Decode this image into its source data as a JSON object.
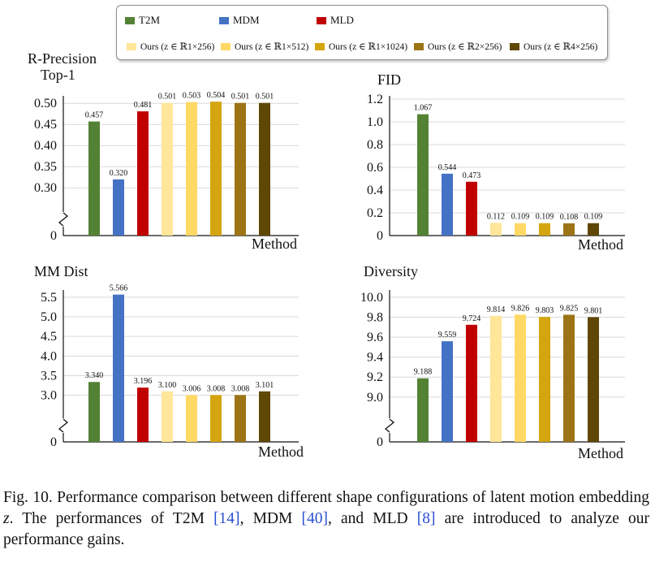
{
  "legend": {
    "series": [
      {
        "name": "T2M",
        "color": "#548235"
      },
      {
        "name": "MDM",
        "color": "#4472c4"
      },
      {
        "name": "MLD",
        "color": "#c00000"
      },
      {
        "name": "Ours (z ∈ ℝ1×256)",
        "color": "#ffe699"
      },
      {
        "name": "Ours (z ∈ ℝ1×512)",
        "color": "#ffd966"
      },
      {
        "name": "Ours (z ∈ ℝ1×1024)",
        "color": "#d4a50f"
      },
      {
        "name": "Ours (z ∈ ℝ2×256)",
        "color": "#9c7416"
      },
      {
        "name": "Ours (z ∈ ℝ4×256)",
        "color": "#5f4706"
      }
    ]
  },
  "chart_data": [
    {
      "type": "bar",
      "title": "R-Precision Top-1",
      "xlabel": "Method",
      "categories": [
        "T2M",
        "MDM",
        "MLD",
        "Ours (z ∈ ℝ1×256)",
        "Ours (z ∈ ℝ1×512)",
        "Ours (z ∈ ℝ1×1024)",
        "Ours (z ∈ ℝ2×256)",
        "Ours (z ∈ ℝ4×256)"
      ],
      "values": [
        0.457,
        0.32,
        0.481,
        0.501,
        0.503,
        0.504,
        0.501,
        0.501
      ],
      "value_labels": [
        "0.457",
        "0.320",
        "0.481",
        "0.501",
        "0.503",
        "0.504",
        "0.501",
        "0.501"
      ],
      "yticks": [
        "0.50",
        "0.45",
        "0.40",
        "0.35",
        "0.30"
      ],
      "ytick_values": [
        0.5,
        0.45,
        0.4,
        0.35,
        0.3
      ],
      "ylim": [
        0.26,
        0.51
      ],
      "zero_label": "0",
      "axis_break": true
    },
    {
      "type": "bar",
      "title": "FID",
      "xlabel": "Method",
      "categories": [
        "T2M",
        "MDM",
        "MLD",
        "Ours (z ∈ ℝ1×256)",
        "Ours (z ∈ ℝ1×512)",
        "Ours (z ∈ ℝ1×1024)",
        "Ours (z ∈ ℝ2×256)",
        "Ours (z ∈ ℝ4×256)"
      ],
      "values": [
        1.067,
        0.544,
        0.473,
        0.112,
        0.109,
        0.109,
        0.108,
        0.109
      ],
      "value_labels": [
        "1.067",
        "0.544",
        "0.473",
        "0.112",
        "0.109",
        "0.109",
        "0.108",
        "0.109"
      ],
      "yticks": [
        "1.2",
        "1.0",
        "0.8",
        "0.6",
        "0.4",
        "0.2"
      ],
      "ytick_values": [
        1.2,
        1.0,
        0.8,
        0.6,
        0.4,
        0.2
      ],
      "ylim": [
        0.0,
        1.2
      ],
      "zero_label": "0",
      "axis_break": false
    },
    {
      "type": "bar",
      "title": "MM Dist",
      "xlabel": "Method",
      "categories": [
        "T2M",
        "MDM",
        "MLD",
        "Ours (z ∈ ℝ1×256)",
        "Ours (z ∈ ℝ1×512)",
        "Ours (z ∈ ℝ1×1024)",
        "Ours (z ∈ ℝ2×256)",
        "Ours (z ∈ ℝ4×256)"
      ],
      "values": [
        3.34,
        5.566,
        3.196,
        3.1,
        3.006,
        3.008,
        3.008,
        3.101
      ],
      "value_labels": [
        "3.340",
        "5.566",
        "3.196",
        "3.100",
        "3.006",
        "3.008",
        "3.008",
        "3.101"
      ],
      "yticks": [
        "5.5",
        "5.0",
        "4.5",
        "4.0",
        "3.5",
        "3.0"
      ],
      "ytick_values": [
        5.5,
        5.0,
        4.5,
        4.0,
        3.5,
        3.0
      ],
      "ylim": [
        2.6,
        5.6
      ],
      "zero_label": "0",
      "axis_break": true
    },
    {
      "type": "bar",
      "title": "Diversity",
      "xlabel": "Method",
      "categories": [
        "T2M",
        "MDM",
        "MLD",
        "Ours (z ∈ ℝ1×256)",
        "Ours (z ∈ ℝ1×512)",
        "Ours (z ∈ ℝ1×1024)",
        "Ours (z ∈ ℝ2×256)",
        "Ours (z ∈ ℝ4×256)"
      ],
      "values": [
        9.188,
        9.559,
        9.724,
        9.814,
        9.826,
        9.803,
        9.825,
        9.801
      ],
      "value_labels": [
        "9.188",
        "9.559",
        "9.724",
        "9.814",
        "9.826",
        "9.803",
        "9.825",
        "9.801"
      ],
      "yticks": [
        "10.0",
        "9.8",
        "9.6",
        "9.4",
        "9.2",
        "9.0"
      ],
      "ytick_values": [
        10.0,
        9.8,
        9.6,
        9.4,
        9.2,
        9.0
      ],
      "ylim": [
        8.86,
        10.04
      ],
      "zero_label": "0",
      "axis_break": true
    }
  ],
  "caption": {
    "part1": "Fig. 10.    Performance comparison between different shape configurations of latent motion embedding ",
    "var": "z",
    "part2": ". The performances of T2M ",
    "ref1": "[14]",
    "part3": ", MDM ",
    "ref2": "[40]",
    "part4": ", and MLD ",
    "ref3": "[8]",
    "part5": " are introduced to analyze our performance gains."
  }
}
